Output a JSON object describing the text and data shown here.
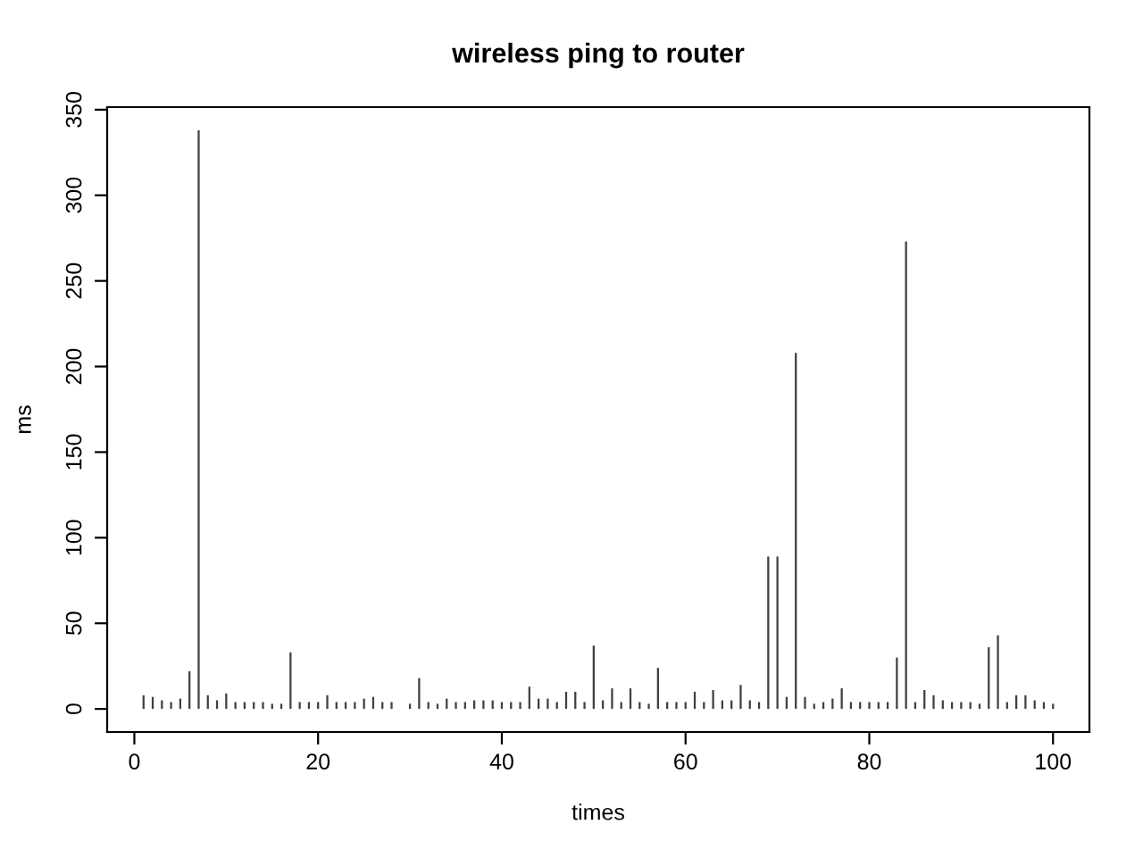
{
  "chart_data": {
    "type": "bar",
    "title": "wireless ping to router",
    "xlabel": "times",
    "ylabel": "ms",
    "x": [
      1,
      2,
      3,
      4,
      5,
      6,
      7,
      8,
      9,
      10,
      11,
      12,
      13,
      14,
      15,
      16,
      17,
      18,
      19,
      20,
      21,
      22,
      23,
      24,
      25,
      26,
      27,
      28,
      29,
      30,
      31,
      32,
      33,
      34,
      35,
      36,
      37,
      38,
      39,
      40,
      41,
      42,
      43,
      44,
      45,
      46,
      47,
      48,
      49,
      50,
      51,
      52,
      53,
      54,
      55,
      56,
      57,
      58,
      59,
      60,
      61,
      62,
      63,
      64,
      65,
      66,
      67,
      68,
      69,
      70,
      71,
      72,
      73,
      74,
      75,
      76,
      77,
      78,
      79,
      80,
      81,
      82,
      83,
      84,
      85,
      86,
      87,
      88,
      89,
      90,
      91,
      92,
      93,
      94,
      95,
      96,
      97,
      98,
      99,
      100
    ],
    "values": [
      8,
      7,
      5,
      4,
      6,
      22,
      338,
      8,
      5,
      9,
      4,
      4,
      4,
      4,
      3,
      3,
      33,
      4,
      4,
      4,
      8,
      4,
      4,
      4,
      6,
      7,
      4,
      4,
      null,
      3,
      18,
      4,
      3,
      6,
      4,
      4,
      5,
      5,
      5,
      4,
      4,
      4,
      13,
      6,
      6,
      4,
      10,
      10,
      4,
      37,
      5,
      12,
      4,
      12,
      4,
      3,
      24,
      4,
      4,
      4,
      10,
      4,
      11,
      5,
      5,
      14,
      5,
      4,
      89,
      89,
      7,
      208,
      7,
      3,
      4,
      6,
      12,
      4,
      4,
      4,
      4,
      4,
      30,
      273,
      4,
      11,
      8,
      5,
      4,
      4,
      4,
      3,
      36,
      43,
      4,
      8,
      8,
      5,
      4,
      3
    ],
    "color": "#404040",
    "xlim": [
      -2.96,
      103.96
    ],
    "ylim": [
      -13.5,
      351.5
    ],
    "xticks": [
      0,
      20,
      40,
      60,
      80,
      100
    ],
    "yticks": [
      0,
      50,
      100,
      150,
      200,
      250,
      300,
      350
    ],
    "grid": false,
    "legend": false
  }
}
